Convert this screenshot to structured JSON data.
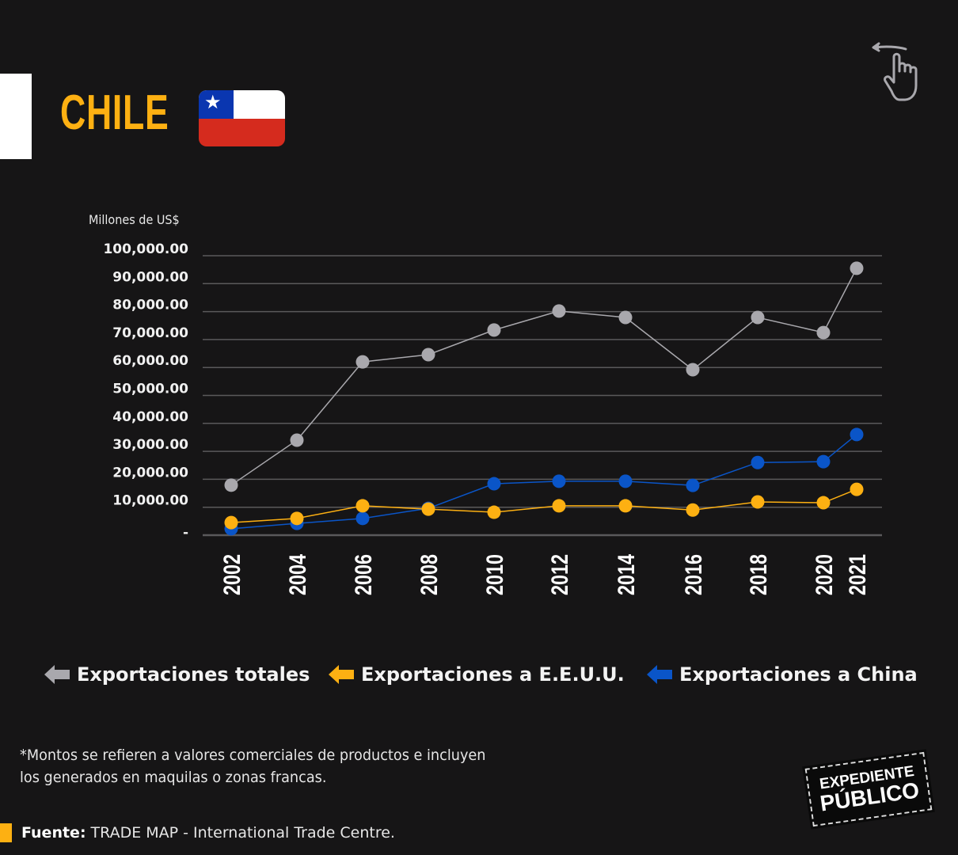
{
  "header": {
    "title": "CHILE",
    "flag": "chile-flag",
    "swipe_icon": "swipe-left-hand-icon"
  },
  "colors": {
    "background": "#161516",
    "accent": "#fdb012",
    "total": "#a9a8ad",
    "usa": "#fdb012",
    "china": "#0a55c8",
    "grid": "#5a595b"
  },
  "chart_data": {
    "type": "line",
    "title": "CHILE",
    "ylabel": "Millones de US$",
    "xlabel": "",
    "ylim": [
      0,
      100000
    ],
    "grid": true,
    "legend_position": "bottom",
    "y_ticks": [
      {
        "value": 100000,
        "label": "100,000.00"
      },
      {
        "value": 90000,
        "label": "90,000.00"
      },
      {
        "value": 80000,
        "label": "80,000.00"
      },
      {
        "value": 70000,
        "label": "70,000.00"
      },
      {
        "value": 60000,
        "label": "60,000.00"
      },
      {
        "value": 50000,
        "label": "50,000.00"
      },
      {
        "value": 40000,
        "label": "40,000.00"
      },
      {
        "value": 30000,
        "label": "30,000.00"
      },
      {
        "value": 20000,
        "label": "20,000.00"
      },
      {
        "value": 10000,
        "label": "10,000.00"
      },
      {
        "value": 0,
        "label": "-"
      }
    ],
    "x": [
      "2002",
      "2004",
      "2006",
      "2008",
      "2010",
      "2012",
      "2014",
      "2016",
      "2018",
      "2020",
      "2021"
    ],
    "series": [
      {
        "name": "Exportaciones totales",
        "color": "#a9a8ad",
        "values": [
          17900,
          34000,
          62000,
          64600,
          73400,
          80200,
          77900,
          59200,
          77900,
          72500,
          95500
        ]
      },
      {
        "name": "Exportaciones a China",
        "color": "#0a55c8",
        "values": [
          2300,
          4200,
          6000,
          9600,
          18400,
          19300,
          19300,
          17800,
          26000,
          26300,
          36000
        ]
      },
      {
        "name": "Exportaciones a E.E.U.U.",
        "color": "#fdb012",
        "values": [
          4500,
          6000,
          10500,
          9300,
          8200,
          10500,
          10500,
          9000,
          11900,
          11600,
          16400
        ]
      }
    ]
  },
  "legend": [
    {
      "label": "Exportaciones totales",
      "color": "#a9a8ad",
      "icon": "arrow-left-icon"
    },
    {
      "label": "Exportaciones a E.E.U.U.",
      "color": "#fdb012",
      "icon": "arrow-left-icon"
    },
    {
      "label": "Exportaciones a China",
      "color": "#0a55c8",
      "icon": "arrow-left-icon"
    }
  ],
  "footer": {
    "note_line1": "*Montos se refieren a valores comerciales de productos e incluyen",
    "note_line2": "los generados en maquilas o zonas francas.",
    "source_label": "Fuente:",
    "source_text": "TRADE MAP - International Trade Centre.",
    "logo_line1": "EXPEDIENTE",
    "logo_line2": "PÚBLICO"
  }
}
